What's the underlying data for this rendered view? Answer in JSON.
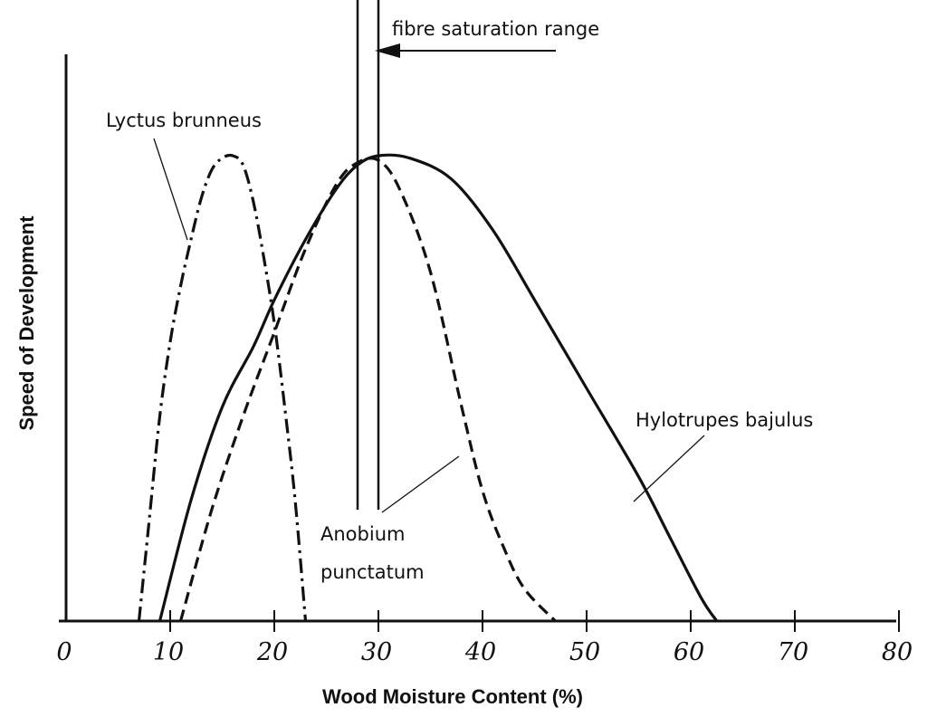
{
  "chart_data": {
    "type": "line",
    "title": "",
    "xlabel": "Wood Moisture Content (%)",
    "ylabel": "Speed of Development",
    "xlim": [
      0,
      80
    ],
    "ylim": [
      0,
      1
    ],
    "x_ticks": [
      0,
      10,
      20,
      30,
      40,
      50,
      60,
      70,
      80
    ],
    "grid": false,
    "legend": "none",
    "series": [
      {
        "name": "Lyctus brunneus",
        "style": "dash-dot",
        "color": "#111111",
        "points": [
          [
            7,
            0
          ],
          [
            8,
            0.22
          ],
          [
            9,
            0.44
          ],
          [
            10,
            0.6
          ],
          [
            11,
            0.72
          ],
          [
            12,
            0.82
          ],
          [
            13,
            0.91
          ],
          [
            14,
            0.97
          ],
          [
            15,
            0.995
          ],
          [
            16,
            1.0
          ],
          [
            17,
            0.98
          ],
          [
            18,
            0.9
          ],
          [
            19,
            0.78
          ],
          [
            20,
            0.64
          ],
          [
            21,
            0.46
          ],
          [
            22,
            0.26
          ],
          [
            23,
            0
          ]
        ]
      },
      {
        "name": "Anobium punctatum",
        "style": "dashed",
        "color": "#111111",
        "points": [
          [
            11,
            0
          ],
          [
            14,
            0.24
          ],
          [
            17,
            0.44
          ],
          [
            20,
            0.62
          ],
          [
            23,
            0.8
          ],
          [
            26,
            0.94
          ],
          [
            28,
            0.985
          ],
          [
            30,
            0.99
          ],
          [
            32,
            0.93
          ],
          [
            35,
            0.75
          ],
          [
            38,
            0.46
          ],
          [
            40,
            0.28
          ],
          [
            42,
            0.16
          ],
          [
            44,
            0.07
          ],
          [
            47,
            0
          ]
        ]
      },
      {
        "name": "Hylotrupes bajulus",
        "style": "solid",
        "color": "#111111",
        "points": [
          [
            9,
            0
          ],
          [
            12,
            0.26
          ],
          [
            15,
            0.46
          ],
          [
            18,
            0.59
          ],
          [
            20,
            0.69
          ],
          [
            23,
            0.82
          ],
          [
            26,
            0.93
          ],
          [
            28,
            0.98
          ],
          [
            30,
            1.0
          ],
          [
            33,
            0.995
          ],
          [
            37,
            0.95
          ],
          [
            41,
            0.84
          ],
          [
            45,
            0.69
          ],
          [
            50,
            0.5
          ],
          [
            55,
            0.31
          ],
          [
            58,
            0.18
          ],
          [
            61,
            0.05
          ],
          [
            62.5,
            0
          ]
        ]
      }
    ],
    "annotations": {
      "fibre_saturation_range": {
        "label": "fibre saturation range",
        "x_range": [
          28,
          30
        ]
      },
      "labels": [
        {
          "text": "Lyctus brunneus",
          "points_to": "Lyctus brunneus"
        },
        {
          "text": "Anobium",
          "points_to": "Anobium punctatum"
        },
        {
          "text": "punctatum",
          "points_to": "Anobium punctatum"
        },
        {
          "text": "Hylotrupes bajulus",
          "points_to": "Hylotrupes bajulus"
        }
      ]
    }
  }
}
